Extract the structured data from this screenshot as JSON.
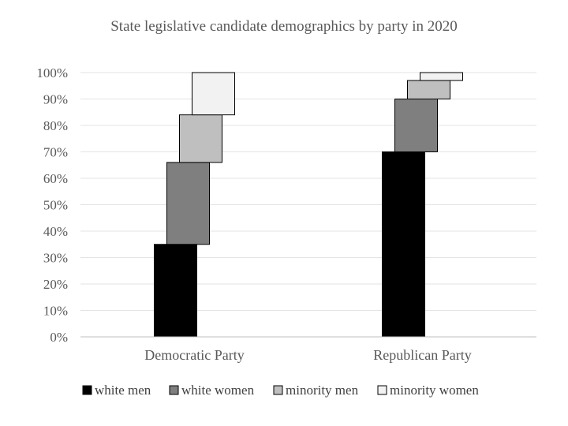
{
  "chart_data": {
    "type": "bar",
    "subtype": "waterfall-stacked",
    "title": "State legislative candidate demographics by party in 2020",
    "categories": [
      "Democratic Party",
      "Republican Party"
    ],
    "series": [
      {
        "name": "white men",
        "color": "#000000",
        "values": [
          35,
          70
        ]
      },
      {
        "name": "white women",
        "color": "#7f7f7f",
        "values": [
          31,
          20
        ]
      },
      {
        "name": "minority men",
        "color": "#bfbfbf",
        "values": [
          18,
          7
        ]
      },
      {
        "name": "minority women",
        "color": "#f2f2f2",
        "values": [
          16,
          3
        ]
      }
    ],
    "ylim": [
      0,
      100
    ],
    "yticks": [
      "0%",
      "10%",
      "20%",
      "30%",
      "40%",
      "50%",
      "60%",
      "70%",
      "80%",
      "90%",
      "100%"
    ],
    "xlabel": "",
    "ylabel": "",
    "grid": true,
    "legend": "bottom"
  }
}
